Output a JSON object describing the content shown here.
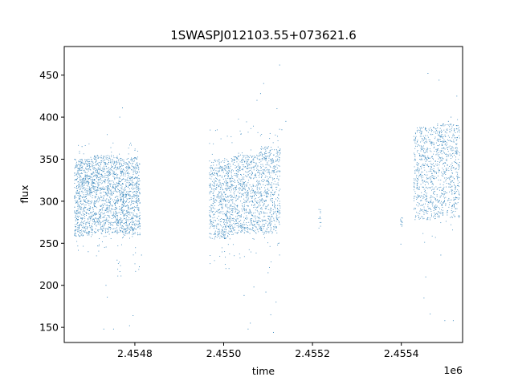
{
  "chart_data": {
    "type": "scatter",
    "title": "1SWASPJ012103.55+073621.6",
    "xlabel": "time",
    "ylabel": "flux",
    "x_offset_label": "1e6",
    "xlim": [
      2454641,
      2455538
    ],
    "ylim": [
      132,
      484
    ],
    "x_ticks": [
      {
        "value": 2454800,
        "label": "2.4548"
      },
      {
        "value": 2455000,
        "label": "2.4550"
      },
      {
        "value": 2455200,
        "label": "2.4552"
      },
      {
        "value": 2455400,
        "label": "2.4554"
      }
    ],
    "y_ticks": [
      {
        "value": 150,
        "label": "150"
      },
      {
        "value": 200,
        "label": "200"
      },
      {
        "value": 250,
        "label": "250"
      },
      {
        "value": 300,
        "label": "300"
      },
      {
        "value": 350,
        "label": "350"
      },
      {
        "value": 400,
        "label": "400"
      },
      {
        "value": 450,
        "label": "450"
      }
    ],
    "grid": false,
    "marker_color": "#1f77b4",
    "series": [
      {
        "segments": [
          {
            "x_start": 2454664,
            "x_end": 2454705,
            "base": 258,
            "top": 350,
            "spread_low": 240,
            "spread_high": 370,
            "density": 620
          },
          {
            "x_start": 2454705,
            "x_end": 2454760,
            "base": 262,
            "top": 355,
            "spread_low": 235,
            "spread_high": 380,
            "density": 760
          },
          {
            "x_start": 2454760,
            "x_end": 2454812,
            "base": 260,
            "top": 352,
            "spread_low": 210,
            "spread_high": 370,
            "density": 780
          },
          {
            "x_start": 2454968,
            "x_end": 2455015,
            "base": 255,
            "top": 350,
            "spread_low": 220,
            "spread_high": 390,
            "density": 560
          },
          {
            "x_start": 2455015,
            "x_end": 2455080,
            "base": 262,
            "top": 355,
            "spread_low": 225,
            "spread_high": 400,
            "density": 720
          },
          {
            "x_start": 2455080,
            "x_end": 2455128,
            "base": 262,
            "top": 365,
            "spread_low": 215,
            "spread_high": 390,
            "density": 520
          },
          {
            "x_start": 2455214,
            "x_end": 2455220,
            "base": 268,
            "top": 292,
            "spread_low": 265,
            "spread_high": 292,
            "density": 12
          },
          {
            "x_start": 2455398,
            "x_end": 2455403,
            "base": 270,
            "top": 282,
            "spread_low": 270,
            "spread_high": 282,
            "density": 12
          },
          {
            "x_start": 2455428,
            "x_end": 2455480,
            "base": 278,
            "top": 388,
            "spread_low": 250,
            "spread_high": 390,
            "density": 520
          },
          {
            "x_start": 2455480,
            "x_end": 2455532,
            "base": 280,
            "top": 392,
            "spread_low": 260,
            "spread_high": 400,
            "density": 520
          }
        ],
        "outliers": [
          [
            2454681,
            365
          ],
          [
            2454695,
            240
          ],
          [
            2454735,
            200
          ],
          [
            2454738,
            186
          ],
          [
            2454760,
            230
          ],
          [
            2454766,
            400
          ],
          [
            2454772,
            411
          ],
          [
            2454788,
            152
          ],
          [
            2454810,
            222
          ],
          [
            2454815,
            236
          ],
          [
            2454752,
            148
          ],
          [
            2454730,
            148
          ],
          [
            2454796,
            164
          ],
          [
            2455005,
            220
          ],
          [
            2455012,
            220
          ],
          [
            2455055,
            148
          ],
          [
            2455060,
            155
          ],
          [
            2455068,
            198
          ],
          [
            2455075,
            420
          ],
          [
            2455083,
            428
          ],
          [
            2455090,
            440
          ],
          [
            2455100,
            215
          ],
          [
            2455106,
            165
          ],
          [
            2455112,
            144
          ],
          [
            2455118,
            180
          ],
          [
            2455126,
            462
          ],
          [
            2455131,
            385
          ],
          [
            2455140,
            395
          ],
          [
            2455120,
            410
          ],
          [
            2455095,
            192
          ],
          [
            2455046,
            188
          ],
          [
            2455399,
            249
          ],
          [
            2455451,
            185
          ],
          [
            2455455,
            210
          ],
          [
            2455460,
            452
          ],
          [
            2455465,
            166
          ],
          [
            2455485,
            444
          ],
          [
            2455489,
            236
          ],
          [
            2455498,
            158
          ],
          [
            2455506,
            395
          ],
          [
            2455512,
            400
          ],
          [
            2455517,
            158
          ],
          [
            2455525,
            425
          ],
          [
            2455446,
            290
          ],
          [
            2455472,
            388
          ]
        ]
      }
    ]
  }
}
